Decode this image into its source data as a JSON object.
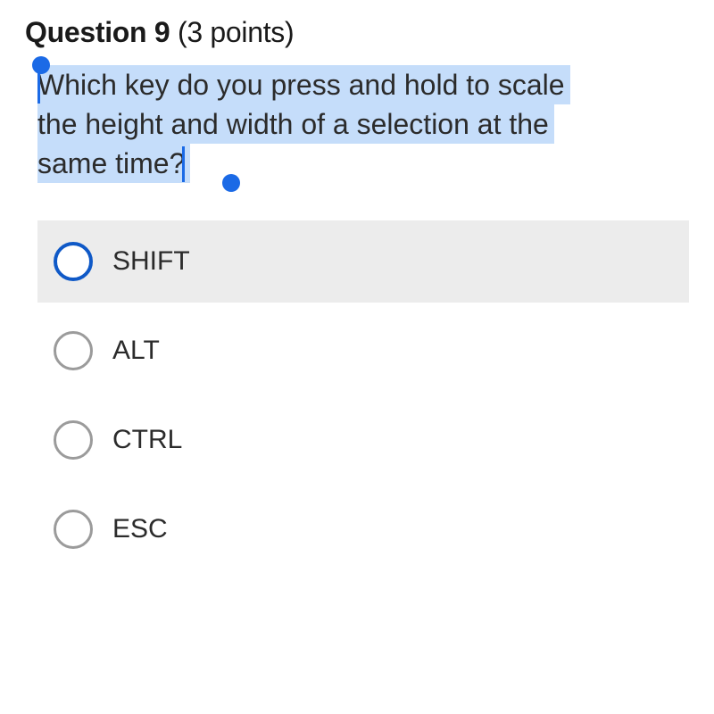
{
  "header": {
    "question_label": "Question 9",
    "points_label": " (3 points)"
  },
  "question": {
    "line1": "Which key do you press and hold to scale",
    "line2": "the height and width of a selection at the",
    "line3": "same time?"
  },
  "options": [
    {
      "label": "SHIFT",
      "hovered": true,
      "active_ring": true
    },
    {
      "label": "ALT",
      "hovered": false,
      "active_ring": false
    },
    {
      "label": "CTRL",
      "hovered": false,
      "active_ring": false
    },
    {
      "label": "ESC",
      "hovered": false,
      "active_ring": false
    }
  ],
  "colors": {
    "selection_highlight": "#c5ddfa",
    "selection_handle": "#1b6ae6",
    "radio_inactive": "#9b9b9b",
    "radio_active": "#0f59c7",
    "option_hover_bg": "#ececec",
    "text": "#2b2b2b",
    "background": "#ffffff"
  },
  "typography": {
    "header_fontsize": 32,
    "question_fontsize": 32,
    "option_fontsize": 30
  }
}
